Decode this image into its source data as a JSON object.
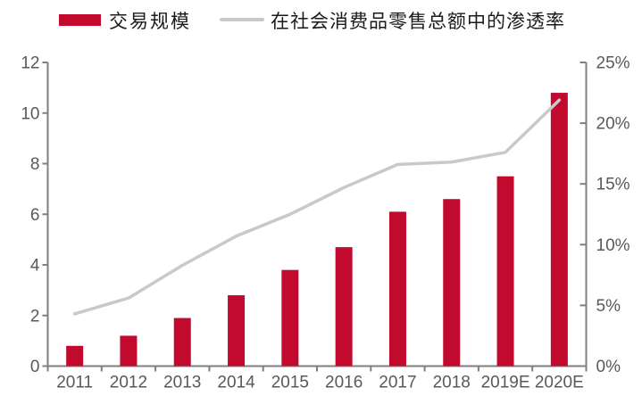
{
  "colors": {
    "bar": "#C20A2E",
    "line": "#C9C9C9",
    "axis": "#7F7F7F",
    "tick_label": "#595959"
  },
  "legend": {
    "bar_label": "交易规模",
    "line_label": "在社会消费品零售总额中的渗透率"
  },
  "chart_data": {
    "type": "bar",
    "subtype": "combo-bar-line-dual-axis",
    "title": "",
    "xlabel": "",
    "ylabel_left": "",
    "ylabel_right": "",
    "grid": false,
    "legend_position": "top",
    "categories": [
      "2011",
      "2012",
      "2013",
      "2014",
      "2015",
      "2016",
      "2017",
      "2018",
      "2019E",
      "2020E"
    ],
    "series": [
      {
        "name": "交易规模",
        "type": "bar",
        "axis": "left",
        "color": "#C20A2E",
        "values": [
          0.8,
          1.2,
          1.9,
          2.8,
          3.8,
          4.7,
          6.1,
          6.6,
          7.5,
          10.8
        ]
      },
      {
        "name": "在社会消费品零售总额中的渗透率",
        "type": "line",
        "axis": "right",
        "color": "#C9C9C9",
        "values": [
          4.3,
          5.6,
          8.3,
          10.7,
          12.5,
          14.7,
          16.6,
          16.8,
          17.6,
          21.9
        ]
      }
    ],
    "left_axis": {
      "min": 0,
      "max": 12,
      "tick_step": 2,
      "tick_labels": [
        "0",
        "2",
        "4",
        "6",
        "8",
        "10",
        "12"
      ]
    },
    "right_axis": {
      "min": 0,
      "max": 25,
      "tick_step": 5,
      "tick_labels": [
        "0%",
        "5%",
        "10%",
        "15%",
        "20%",
        "25%"
      ]
    }
  }
}
